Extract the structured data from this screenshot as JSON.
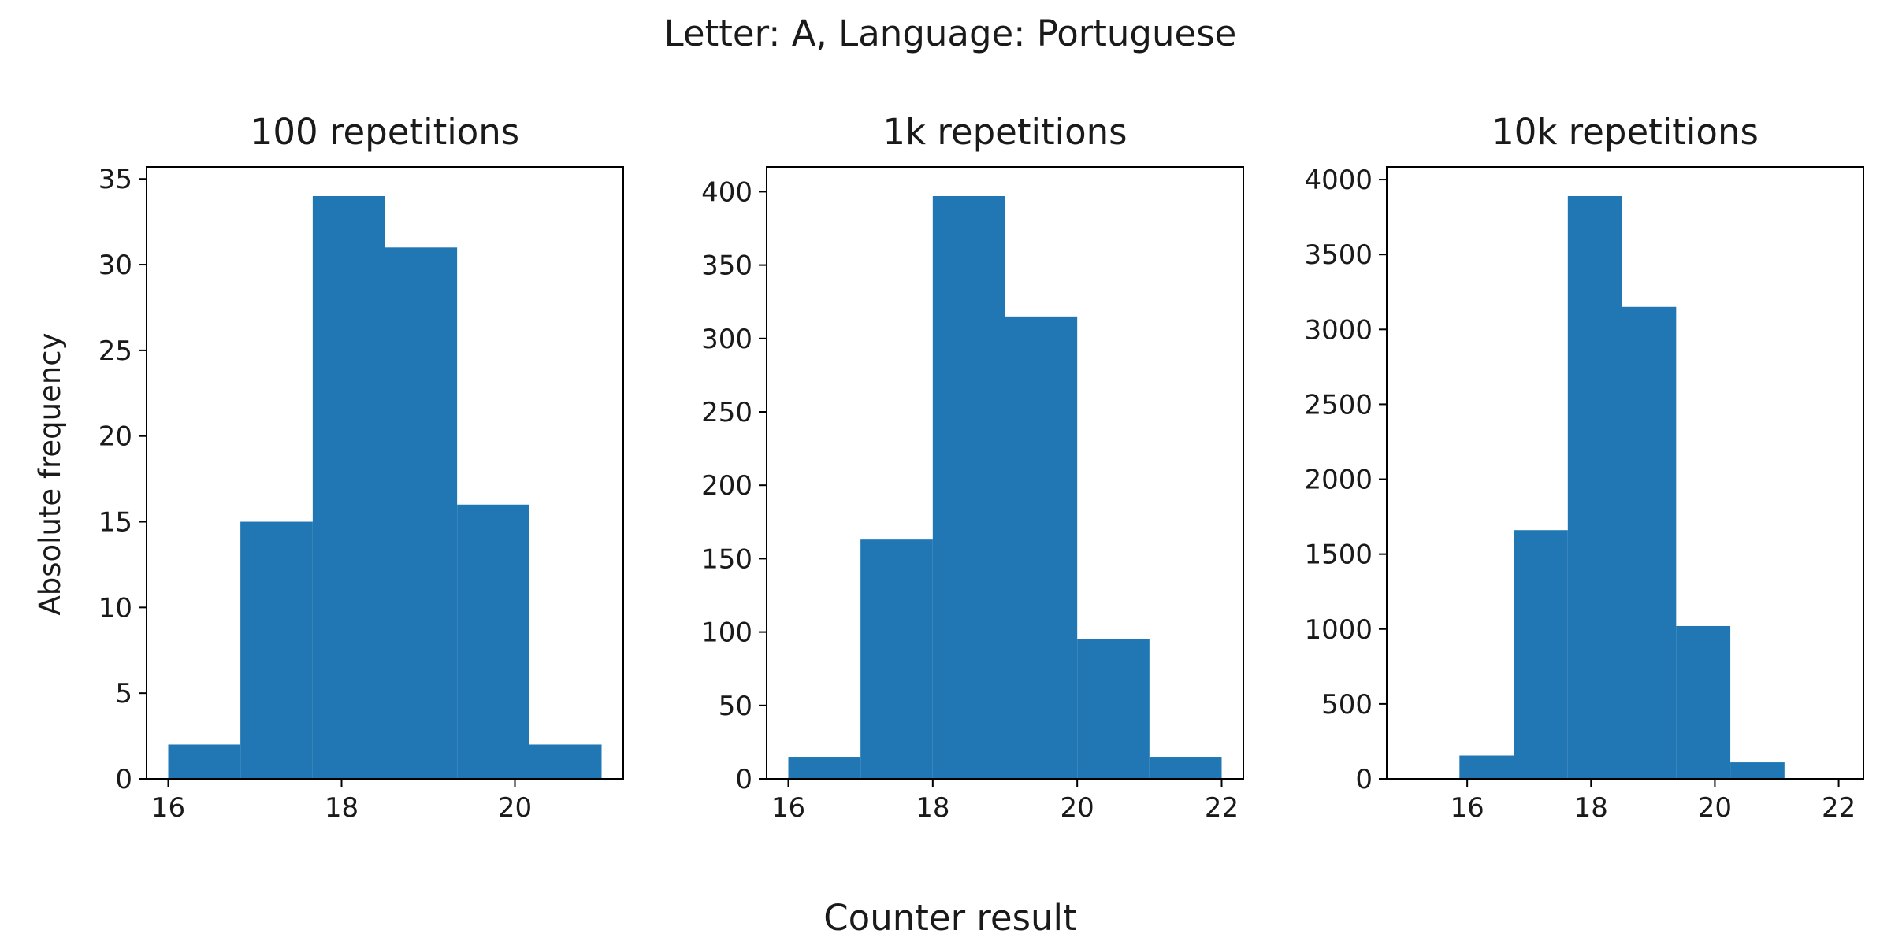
{
  "suptitle": "Letter: A, Language: Portuguese",
  "ylabel": "Absolute frequency",
  "xlabel": "Counter result",
  "colors": {
    "bar": "#2077b4",
    "axes": "#000000"
  },
  "chart_data": [
    {
      "type": "bar",
      "title": "100 repetitions",
      "bins": [
        [
          16,
          16.833
        ],
        [
          16.833,
          17.667
        ],
        [
          17.667,
          18.5
        ],
        [
          18.5,
          19.333
        ],
        [
          19.333,
          20.167
        ],
        [
          20.167,
          21
        ]
      ],
      "values": [
        2,
        15,
        34,
        31,
        16,
        2
      ],
      "xlim": [
        15.75,
        21.25
      ],
      "ylim": [
        0,
        35.7
      ],
      "xticks": [
        16,
        18,
        20
      ],
      "yticks": [
        0,
        5,
        10,
        15,
        20,
        25,
        30,
        35
      ],
      "xlabel": "",
      "ylabel": "Absolute frequency",
      "grid": false
    },
    {
      "type": "bar",
      "title": "1k repetitions",
      "bins": [
        [
          16,
          17
        ],
        [
          17,
          18
        ],
        [
          18,
          19
        ],
        [
          19,
          20
        ],
        [
          20,
          21
        ],
        [
          21,
          22
        ]
      ],
      "values": [
        15,
        163,
        397,
        315,
        95,
        15
      ],
      "xlim": [
        15.7,
        22.3
      ],
      "ylim": [
        0,
        416.85
      ],
      "xticks": [
        16,
        18,
        20,
        22
      ],
      "yticks": [
        0,
        50,
        100,
        150,
        200,
        250,
        300,
        350,
        400
      ],
      "xlabel": "",
      "ylabel": "",
      "grid": false
    },
    {
      "type": "bar",
      "title": "10k repetitions",
      "bins": [
        [
          15.875,
          16.75
        ],
        [
          16.75,
          17.625
        ],
        [
          17.625,
          18.5
        ],
        [
          18.5,
          19.375
        ],
        [
          19.375,
          20.25
        ],
        [
          20.25,
          21.125
        ]
      ],
      "values": [
        155,
        1660,
        3890,
        3150,
        1020,
        110
      ],
      "xlim": [
        14.7,
        22.4
      ],
      "ylim": [
        0,
        4084.5
      ],
      "xticks": [
        16,
        18,
        20,
        22
      ],
      "yticks": [
        0,
        500,
        1000,
        1500,
        2000,
        2500,
        3000,
        3500,
        4000
      ],
      "xlabel": "",
      "ylabel": "",
      "grid": false
    }
  ]
}
